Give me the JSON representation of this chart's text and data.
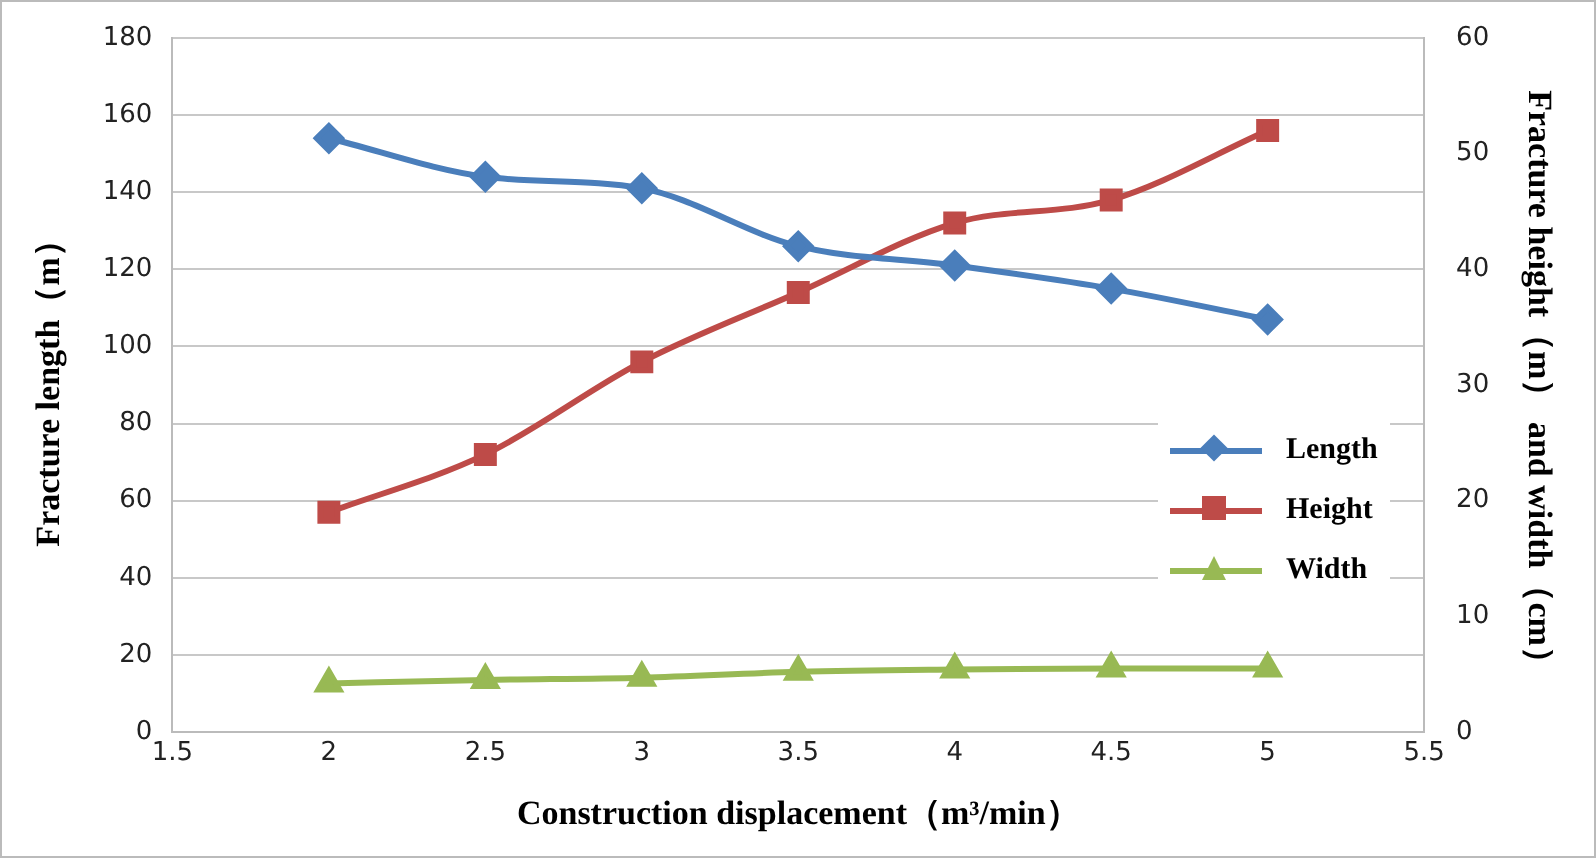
{
  "chart_data": {
    "type": "line",
    "xlabel": "Construction displacement（m³/min）",
    "ylabel": "Fracture length（m）",
    "y2label": "Fracture height（m） and width（cm）",
    "x": [
      2,
      2.5,
      3,
      3.5,
      4,
      4.5,
      5
    ],
    "xlim": [
      1.5,
      5.5
    ],
    "xticks": [
      1.5,
      2,
      2.5,
      3,
      3.5,
      4,
      4.5,
      5,
      5.5
    ],
    "ylim": [
      0,
      180
    ],
    "yticks": [
      0,
      20,
      40,
      60,
      80,
      100,
      120,
      140,
      160,
      180
    ],
    "y2lim": [
      0,
      60
    ],
    "y2ticks": [
      0,
      10,
      20,
      30,
      40,
      50,
      60
    ],
    "grid": "y",
    "legend": "right",
    "series": [
      {
        "name": "Length",
        "color": "#4a7ebb",
        "marker": "diamond",
        "values": [
          154,
          144,
          141,
          126,
          121,
          115,
          107
        ]
      },
      {
        "name": "Height",
        "color": "#be4b48",
        "marker": "square",
        "axis": "y2",
        "values": [
          19,
          24,
          32,
          38,
          44,
          46,
          52
        ]
      },
      {
        "name": "Width",
        "color": "#98b954",
        "marker": "triangle",
        "axis": "y2",
        "values": [
          4.2,
          4.5,
          4.7,
          5.2,
          5.4,
          5.5,
          5.5
        ]
      }
    ]
  }
}
